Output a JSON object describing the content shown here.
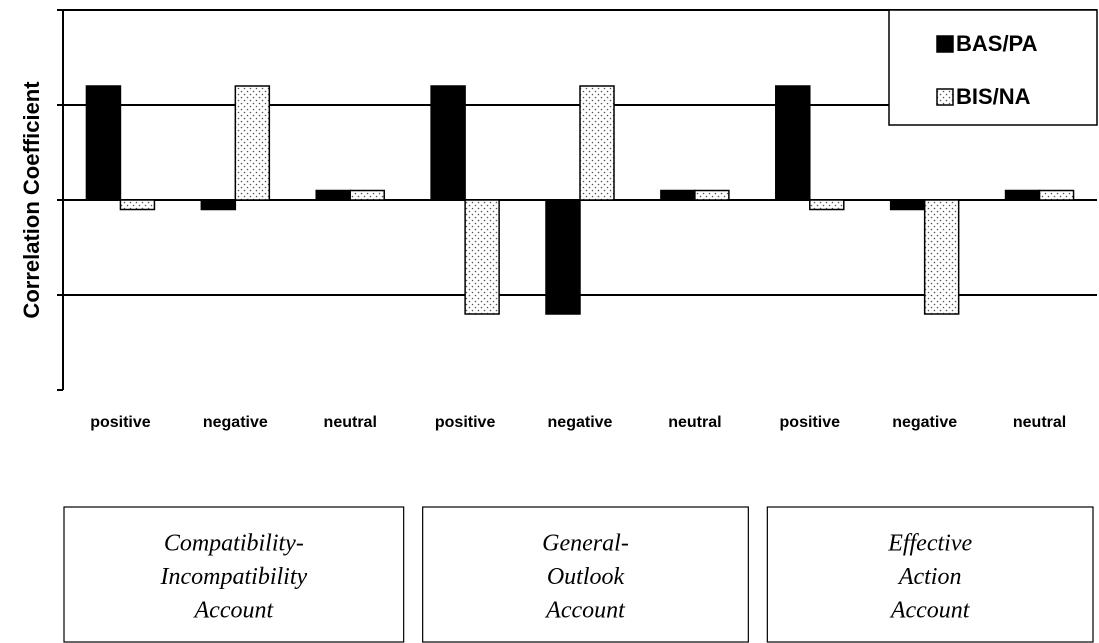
{
  "chart_data": {
    "type": "bar",
    "y_label": "Correlation Coefficient",
    "categories": [
      "positive",
      "negative",
      "neutral",
      "positive",
      "negative",
      "neutral",
      "positive",
      "negative",
      "neutral"
    ],
    "groups": [
      [
        "Compatibility-",
        "Incompatibility",
        "Account"
      ],
      [
        "General-",
        "Outlook",
        "Account"
      ],
      [
        "Effective",
        "Action",
        "Account"
      ]
    ],
    "series": [
      {
        "name": "BAS/PA",
        "color": "#000000",
        "values": [
          0.6,
          -0.05,
          0.05,
          0.6,
          -0.6,
          0.05,
          0.6,
          -0.05,
          0.05
        ]
      },
      {
        "name": "BIS/NA",
        "color": "dotted",
        "values": [
          -0.05,
          0.6,
          0.05,
          -0.6,
          0.6,
          0.05,
          -0.05,
          -0.6,
          0.05
        ]
      }
    ],
    "ylim": [
      -1,
      1
    ],
    "yticks": [
      -1,
      -0.5,
      0,
      0.5,
      1
    ],
    "grid": true,
    "legend": "top-right"
  }
}
